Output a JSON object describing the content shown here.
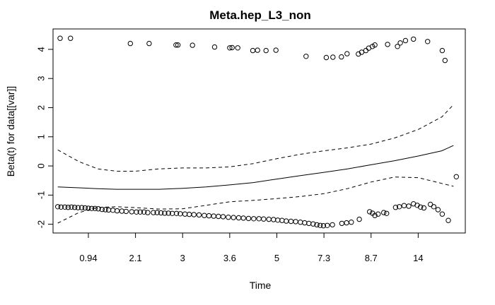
{
  "chart_data": {
    "type": "line",
    "title": "Meta.hep_L3_non",
    "xlabel": "Time",
    "ylabel": "Beta(t) for data[[var]]",
    "x_scale": "transformed (tick labels are quantile times)",
    "x_ticks": [
      "0.94",
      "2.1",
      "3",
      "3.6",
      "5",
      "7.3",
      "8.7",
      "14"
    ],
    "xlim": [
      0.25,
      9.0
    ],
    "x_tick_positions": [
      1,
      2,
      3,
      4,
      5,
      6,
      7,
      8
    ],
    "ylim": [
      -2.3,
      4.7
    ],
    "y_ticks": [
      -2,
      -1,
      0,
      1,
      2,
      3,
      4
    ],
    "grid": false,
    "legend": "none",
    "series": [
      {
        "style": "solid",
        "x": [
          0.35,
          0.8,
          1.2,
          1.6,
          2.0,
          2.5,
          3.0,
          3.5,
          4.0,
          4.5,
          5.0,
          5.5,
          6.0,
          6.5,
          7.0,
          7.5,
          8.0,
          8.5,
          8.75
        ],
        "y": [
          -0.72,
          -0.75,
          -0.78,
          -0.8,
          -0.8,
          -0.8,
          -0.77,
          -0.72,
          -0.65,
          -0.57,
          -0.45,
          -0.33,
          -0.22,
          -0.1,
          0.04,
          0.18,
          0.34,
          0.52,
          0.7
        ]
      },
      {
        "style": "dashed",
        "x": [
          0.35,
          0.8,
          1.2,
          1.6,
          2.0,
          2.5,
          3.0,
          3.5,
          4.0,
          4.5,
          5.0,
          5.5,
          6.0,
          6.5,
          7.0,
          7.5,
          8.0,
          8.5,
          8.75
        ],
        "y": [
          0.55,
          0.15,
          -0.1,
          -0.18,
          -0.18,
          -0.1,
          -0.07,
          -0.07,
          -0.03,
          0.08,
          0.25,
          0.4,
          0.52,
          0.62,
          0.75,
          0.96,
          1.25,
          1.68,
          2.1
        ]
      },
      {
        "style": "dashed",
        "x": [
          0.35,
          0.8,
          1.2,
          1.6,
          2.0,
          2.5,
          3.0,
          3.5,
          4.0,
          4.5,
          5.0,
          5.5,
          6.0,
          6.5,
          7.0,
          7.5,
          8.0,
          8.5,
          8.75
        ],
        "y": [
          -1.96,
          -1.6,
          -1.42,
          -1.4,
          -1.43,
          -1.48,
          -1.47,
          -1.35,
          -1.23,
          -1.18,
          -1.12,
          -1.05,
          -0.95,
          -0.78,
          -0.55,
          -0.38,
          -0.4,
          -0.6,
          -0.7
        ]
      }
    ],
    "points": [
      {
        "x": 0.4,
        "y": 4.38
      },
      {
        "x": 0.62,
        "y": 4.38
      },
      {
        "x": 1.89,
        "y": 4.2
      },
      {
        "x": 2.29,
        "y": 4.2
      },
      {
        "x": 2.86,
        "y": 4.15
      },
      {
        "x": 2.9,
        "y": 4.15
      },
      {
        "x": 3.21,
        "y": 4.14
      },
      {
        "x": 3.68,
        "y": 4.08
      },
      {
        "x": 4.0,
        "y": 4.05
      },
      {
        "x": 4.05,
        "y": 4.06
      },
      {
        "x": 4.17,
        "y": 4.05
      },
      {
        "x": 4.49,
        "y": 3.96
      },
      {
        "x": 4.59,
        "y": 3.97
      },
      {
        "x": 4.77,
        "y": 3.96
      },
      {
        "x": 4.98,
        "y": 3.97
      },
      {
        "x": 5.62,
        "y": 3.76
      },
      {
        "x": 6.05,
        "y": 3.72
      },
      {
        "x": 6.19,
        "y": 3.73
      },
      {
        "x": 6.37,
        "y": 3.74
      },
      {
        "x": 6.49,
        "y": 3.85
      },
      {
        "x": 6.73,
        "y": 3.84
      },
      {
        "x": 6.8,
        "y": 3.9
      },
      {
        "x": 6.89,
        "y": 3.96
      },
      {
        "x": 6.95,
        "y": 4.04
      },
      {
        "x": 7.03,
        "y": 4.1
      },
      {
        "x": 7.08,
        "y": 4.15
      },
      {
        "x": 7.35,
        "y": 4.17
      },
      {
        "x": 7.56,
        "y": 4.1
      },
      {
        "x": 7.62,
        "y": 4.22
      },
      {
        "x": 7.73,
        "y": 4.3
      },
      {
        "x": 7.9,
        "y": 4.35
      },
      {
        "x": 8.2,
        "y": 4.27
      },
      {
        "x": 8.51,
        "y": 3.96
      },
      {
        "x": 8.57,
        "y": 3.62
      },
      {
        "x": 8.81,
        "y": -0.37
      },
      {
        "x": 0.35,
        "y": -1.4
      },
      {
        "x": 0.42,
        "y": -1.41
      },
      {
        "x": 0.5,
        "y": -1.41
      },
      {
        "x": 0.57,
        "y": -1.42
      },
      {
        "x": 0.64,
        "y": -1.41
      },
      {
        "x": 0.71,
        "y": -1.42
      },
      {
        "x": 0.78,
        "y": -1.43
      },
      {
        "x": 0.86,
        "y": -1.43
      },
      {
        "x": 0.93,
        "y": -1.44
      },
      {
        "x": 1.0,
        "y": -1.45
      },
      {
        "x": 1.07,
        "y": -1.46
      },
      {
        "x": 1.14,
        "y": -1.46
      },
      {
        "x": 1.21,
        "y": -1.47
      },
      {
        "x": 1.29,
        "y": -1.49
      },
      {
        "x": 1.36,
        "y": -1.5
      },
      {
        "x": 1.43,
        "y": -1.51
      },
      {
        "x": 1.52,
        "y": -1.52
      },
      {
        "x": 1.61,
        "y": -1.54
      },
      {
        "x": 1.71,
        "y": -1.55
      },
      {
        "x": 1.8,
        "y": -1.56
      },
      {
        "x": 1.92,
        "y": -1.57
      },
      {
        "x": 2.02,
        "y": -1.58
      },
      {
        "x": 2.1,
        "y": -1.58
      },
      {
        "x": 2.18,
        "y": -1.58
      },
      {
        "x": 2.26,
        "y": -1.6
      },
      {
        "x": 2.38,
        "y": -1.6
      },
      {
        "x": 2.46,
        "y": -1.6
      },
      {
        "x": 2.54,
        "y": -1.61
      },
      {
        "x": 2.62,
        "y": -1.62
      },
      {
        "x": 2.7,
        "y": -1.62
      },
      {
        "x": 2.78,
        "y": -1.63
      },
      {
        "x": 2.87,
        "y": -1.63
      },
      {
        "x": 2.95,
        "y": -1.64
      },
      {
        "x": 3.05,
        "y": -1.65
      },
      {
        "x": 3.14,
        "y": -1.66
      },
      {
        "x": 3.24,
        "y": -1.67
      },
      {
        "x": 3.35,
        "y": -1.68
      },
      {
        "x": 3.46,
        "y": -1.7
      },
      {
        "x": 3.56,
        "y": -1.71
      },
      {
        "x": 3.66,
        "y": -1.72
      },
      {
        "x": 3.76,
        "y": -1.73
      },
      {
        "x": 3.86,
        "y": -1.74
      },
      {
        "x": 3.97,
        "y": -1.76
      },
      {
        "x": 4.08,
        "y": -1.77
      },
      {
        "x": 4.19,
        "y": -1.78
      },
      {
        "x": 4.29,
        "y": -1.79
      },
      {
        "x": 4.4,
        "y": -1.8
      },
      {
        "x": 4.51,
        "y": -1.81
      },
      {
        "x": 4.62,
        "y": -1.81
      },
      {
        "x": 4.72,
        "y": -1.82
      },
      {
        "x": 4.83,
        "y": -1.83
      },
      {
        "x": 4.93,
        "y": -1.84
      },
      {
        "x": 5.02,
        "y": -1.86
      },
      {
        "x": 5.11,
        "y": -1.87
      },
      {
        "x": 5.2,
        "y": -1.89
      },
      {
        "x": 5.3,
        "y": -1.9
      },
      {
        "x": 5.4,
        "y": -1.91
      },
      {
        "x": 5.5,
        "y": -1.93
      },
      {
        "x": 5.59,
        "y": -1.95
      },
      {
        "x": 5.68,
        "y": -1.97
      },
      {
        "x": 5.77,
        "y": -1.99
      },
      {
        "x": 5.85,
        "y": -2.02
      },
      {
        "x": 5.92,
        "y": -2.04
      },
      {
        "x": 5.99,
        "y": -2.05
      },
      {
        "x": 6.07,
        "y": -2.04
      },
      {
        "x": 6.18,
        "y": -2.02
      },
      {
        "x": 6.38,
        "y": -1.97
      },
      {
        "x": 6.48,
        "y": -1.95
      },
      {
        "x": 6.58,
        "y": -1.93
      },
      {
        "x": 6.75,
        "y": -1.83
      },
      {
        "x": 6.97,
        "y": -1.57
      },
      {
        "x": 7.03,
        "y": -1.62
      },
      {
        "x": 7.08,
        "y": -1.7
      },
      {
        "x": 7.15,
        "y": -1.65
      },
      {
        "x": 7.27,
        "y": -1.6
      },
      {
        "x": 7.33,
        "y": -1.63
      },
      {
        "x": 7.52,
        "y": -1.42
      },
      {
        "x": 7.6,
        "y": -1.4
      },
      {
        "x": 7.7,
        "y": -1.36
      },
      {
        "x": 7.8,
        "y": -1.38
      },
      {
        "x": 7.9,
        "y": -1.3
      },
      {
        "x": 7.98,
        "y": -1.35
      },
      {
        "x": 8.05,
        "y": -1.41
      },
      {
        "x": 8.12,
        "y": -1.44
      },
      {
        "x": 8.26,
        "y": -1.32
      },
      {
        "x": 8.33,
        "y": -1.4
      },
      {
        "x": 8.42,
        "y": -1.5
      },
      {
        "x": 8.51,
        "y": -1.65
      },
      {
        "x": 8.64,
        "y": -1.87
      }
    ]
  }
}
